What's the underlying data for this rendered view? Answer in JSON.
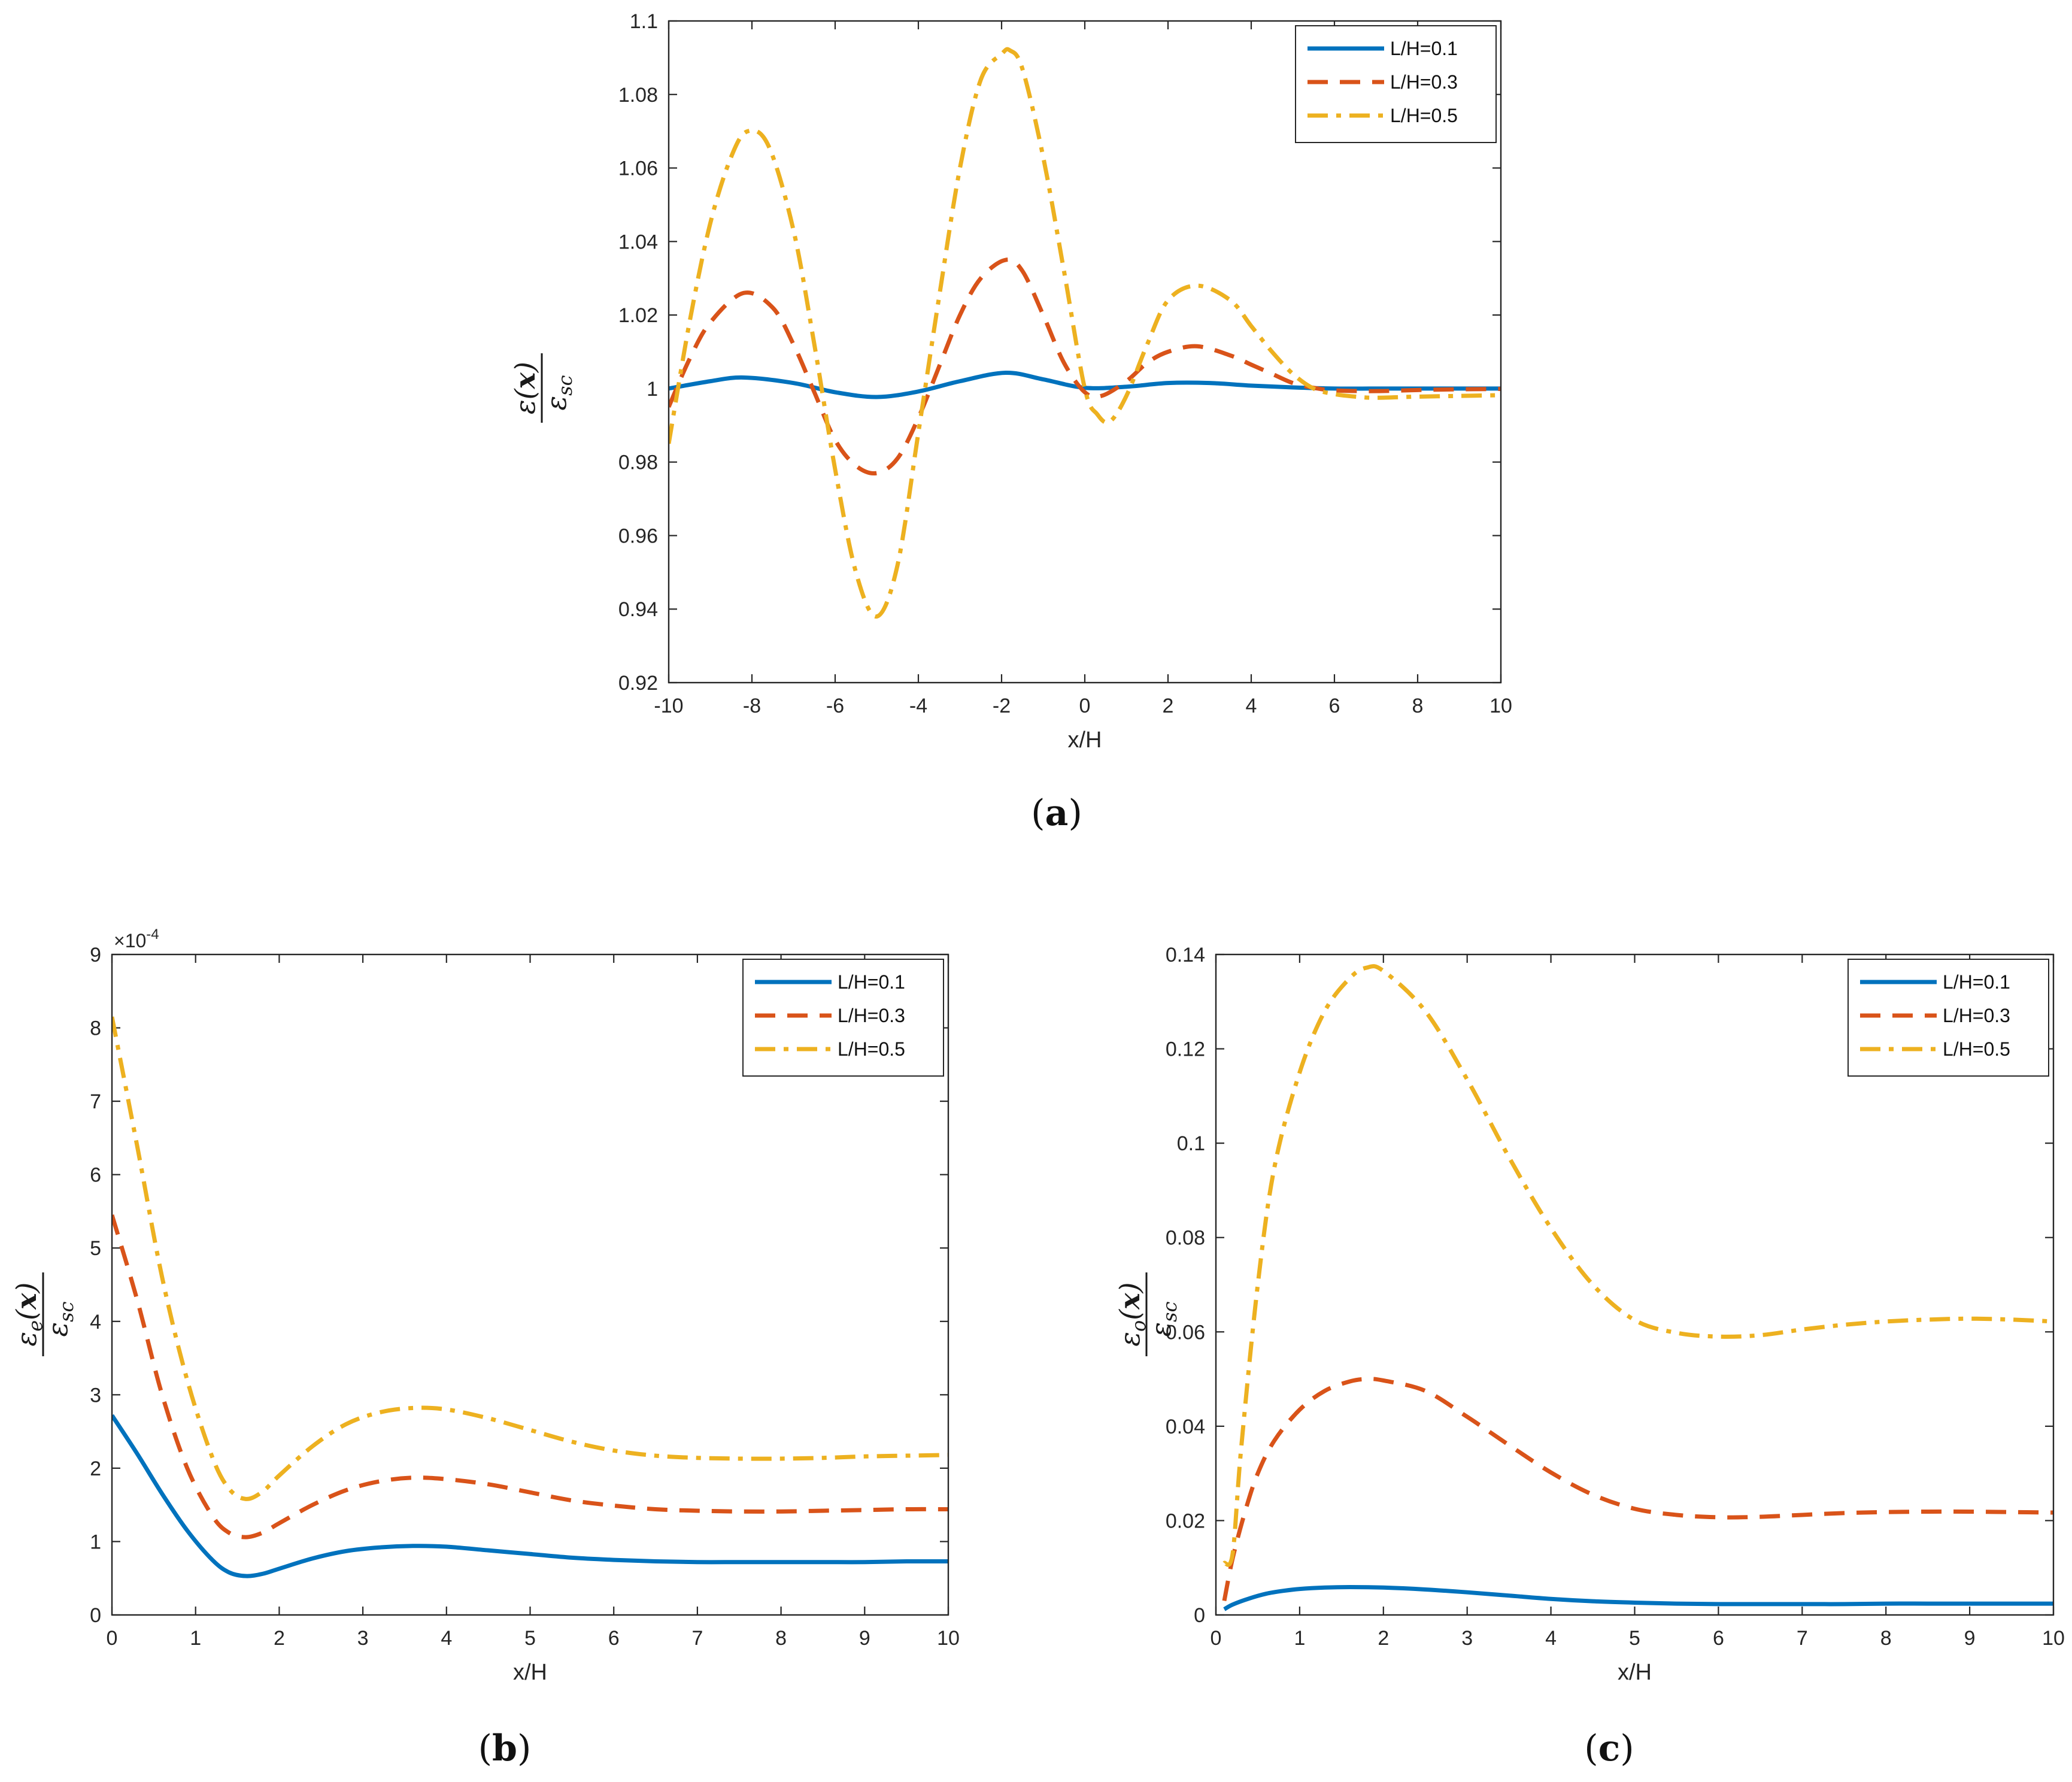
{
  "figure": {
    "panels": [
      {
        "id": "a",
        "label_open": "(",
        "label_letter": "a",
        "label_close": ")"
      },
      {
        "id": "b",
        "label_open": "(",
        "label_letter": "b",
        "label_close": ")"
      },
      {
        "id": "c",
        "label_open": "(",
        "label_letter": "c",
        "label_close": ")"
      }
    ]
  },
  "chart_data": [
    {
      "id": "a",
      "type": "line",
      "xlabel": "x/H",
      "ylabel": "ε(x)/ε_sc",
      "xlim": [
        -10,
        10
      ],
      "ylim": [
        0.92,
        1.1
      ],
      "xticks": [
        -10,
        -8,
        -6,
        -4,
        -2,
        0,
        2,
        4,
        6,
        8,
        10
      ],
      "yticks": [
        0.92,
        0.94,
        0.96,
        0.98,
        1,
        1.02,
        1.04,
        1.06,
        1.08,
        1.1
      ],
      "xtick_labels": [
        "-10",
        "-8",
        "-6",
        "-4",
        "-2",
        "0",
        "2",
        "4",
        "6",
        "8",
        "10"
      ],
      "ytick_labels": [
        "0.92",
        "0.94",
        "0.96",
        "0.98",
        "1",
        "1.02",
        "1.04",
        "1.06",
        "1.08",
        "1.1"
      ],
      "legend_position": "top-right",
      "series": [
        {
          "name": "L/H=0.1",
          "color": "#0072BD",
          "style": "solid",
          "x": [
            -10,
            -9,
            -8.2,
            -7,
            -6,
            -5,
            -4,
            -3,
            -1.9,
            -1,
            0,
            1,
            2,
            3,
            4,
            5,
            6,
            7,
            8,
            9,
            10
          ],
          "y": [
            1.0,
            1.002,
            1.003,
            1.0015,
            0.999,
            0.9977,
            0.9992,
            1.002,
            1.0043,
            1.0025,
            1.0002,
            1.0005,
            1.0015,
            1.0015,
            1.0008,
            1.0003,
            1.0,
            1.0,
            1.0,
            1.0,
            1.0
          ]
        },
        {
          "name": "L/H=0.3",
          "color": "#D95319",
          "style": "dashed",
          "x": [
            -10,
            -9.5,
            -9,
            -8.2,
            -7.5,
            -7,
            -6.5,
            -6,
            -5.5,
            -5,
            -4.5,
            -4,
            -3.5,
            -3,
            -2.5,
            -1.9,
            -1.5,
            -1,
            -0.5,
            0,
            0.4,
            1,
            1.5,
            2,
            2.7,
            3.5,
            4,
            4.5,
            5,
            5.5,
            6,
            7,
            8,
            9,
            10
          ],
          "y": [
            0.995,
            1.008,
            1.018,
            1.026,
            1.022,
            1.012,
            0.999,
            0.986,
            0.979,
            0.977,
            0.981,
            0.992,
            1.006,
            1.02,
            1.03,
            1.035,
            1.032,
            1.02,
            1.007,
            0.999,
            0.998,
            1.002,
            1.007,
            1.01,
            1.0115,
            1.009,
            1.0065,
            1.004,
            1.0015,
            1.0002,
            0.9995,
            0.9993,
            0.9996,
            0.9998,
            0.9999
          ]
        },
        {
          "name": "L/H=0.5",
          "color": "#EDB120",
          "style": "dashdot",
          "x": [
            -10,
            -9.5,
            -9,
            -8.5,
            -8.1,
            -7.6,
            -7,
            -6.5,
            -6,
            -5.5,
            -5,
            -4.5,
            -4,
            -3.5,
            -3,
            -2.5,
            -2,
            -1.8,
            -1.5,
            -1,
            -0.5,
            0,
            0.3,
            0.6,
            1,
            1.5,
            2,
            2.7,
            3.5,
            4,
            4.5,
            5,
            5.5,
            6,
            6.5,
            7,
            8,
            9,
            10
          ],
          "y": [
            0.985,
            1.018,
            1.045,
            1.063,
            1.07,
            1.066,
            1.043,
            1.012,
            0.978,
            0.95,
            0.938,
            0.952,
            0.988,
            1.025,
            1.06,
            1.084,
            1.091,
            1.092,
            1.087,
            1.063,
            1.032,
            1.0,
            0.993,
            0.991,
            0.998,
            1.012,
            1.024,
            1.028,
            1.024,
            1.017,
            1.01,
            1.004,
            1.0,
            0.9985,
            0.9978,
            0.9975,
            0.9978,
            0.998,
            0.9982
          ]
        }
      ]
    },
    {
      "id": "b",
      "type": "line",
      "xlabel": "x/H",
      "ylabel": "ε_e(x)/ε_sc",
      "scale_label_prefix": "×10",
      "scale_label_exp": "-4",
      "xlim": [
        0,
        10
      ],
      "ylim": [
        0,
        9
      ],
      "xticks": [
        0,
        1,
        2,
        3,
        4,
        5,
        6,
        7,
        8,
        9,
        10
      ],
      "yticks": [
        0,
        1,
        2,
        3,
        4,
        5,
        6,
        7,
        8,
        9
      ],
      "xtick_labels": [
        "0",
        "1",
        "2",
        "3",
        "4",
        "5",
        "6",
        "7",
        "8",
        "9",
        "10"
      ],
      "ytick_labels": [
        "0",
        "1",
        "2",
        "3",
        "4",
        "5",
        "6",
        "7",
        "8",
        "9"
      ],
      "legend_position": "top-right",
      "series": [
        {
          "name": "L/H=0.1",
          "color": "#0072BD",
          "style": "solid",
          "x": [
            0,
            0.3,
            0.6,
            0.9,
            1.2,
            1.4,
            1.6,
            1.8,
            2.0,
            2.4,
            2.8,
            3.2,
            3.6,
            4.0,
            4.5,
            5,
            5.5,
            6,
            6.5,
            7,
            7.5,
            8,
            8.5,
            9,
            9.5,
            10
          ],
          "y": [
            2.72,
            2.2,
            1.65,
            1.15,
            0.75,
            0.58,
            0.53,
            0.56,
            0.63,
            0.77,
            0.87,
            0.92,
            0.94,
            0.93,
            0.88,
            0.83,
            0.78,
            0.75,
            0.73,
            0.72,
            0.72,
            0.72,
            0.72,
            0.72,
            0.73,
            0.73
          ]
        },
        {
          "name": "L/H=0.3",
          "color": "#D95319",
          "style": "dashed",
          "x": [
            0,
            0.3,
            0.6,
            0.9,
            1.2,
            1.4,
            1.6,
            1.8,
            2.0,
            2.4,
            2.8,
            3.2,
            3.6,
            4.0,
            4.5,
            5,
            5.5,
            6,
            6.5,
            7,
            7.5,
            8,
            8.5,
            9,
            9.5,
            10
          ],
          "y": [
            5.45,
            4.3,
            3.0,
            2.0,
            1.35,
            1.12,
            1.06,
            1.12,
            1.25,
            1.5,
            1.7,
            1.82,
            1.87,
            1.85,
            1.78,
            1.67,
            1.56,
            1.49,
            1.44,
            1.42,
            1.41,
            1.41,
            1.42,
            1.43,
            1.44,
            1.44
          ]
        },
        {
          "name": "L/H=0.5",
          "color": "#EDB120",
          "style": "dashdot",
          "x": [
            0,
            0.3,
            0.6,
            0.9,
            1.2,
            1.4,
            1.6,
            1.8,
            2.0,
            2.4,
            2.8,
            3.2,
            3.6,
            4.0,
            4.5,
            5,
            5.5,
            6,
            6.5,
            7,
            7.5,
            8,
            8.5,
            9,
            9.5,
            10
          ],
          "y": [
            8.15,
            6.4,
            4.6,
            3.2,
            2.15,
            1.72,
            1.58,
            1.68,
            1.9,
            2.3,
            2.6,
            2.76,
            2.82,
            2.8,
            2.68,
            2.52,
            2.36,
            2.24,
            2.17,
            2.14,
            2.13,
            2.13,
            2.14,
            2.16,
            2.17,
            2.18
          ]
        }
      ]
    },
    {
      "id": "c",
      "type": "line",
      "xlabel": "x/H",
      "ylabel": "ε_o(x)/ε_sc",
      "xlim": [
        0,
        10
      ],
      "ylim": [
        0,
        0.14
      ],
      "xticks": [
        0,
        1,
        2,
        3,
        4,
        5,
        6,
        7,
        8,
        9,
        10
      ],
      "yticks": [
        0,
        0.02,
        0.04,
        0.06,
        0.08,
        0.1,
        0.12,
        0.14
      ],
      "xtick_labels": [
        "0",
        "1",
        "2",
        "3",
        "4",
        "5",
        "6",
        "7",
        "8",
        "9",
        "10"
      ],
      "ytick_labels": [
        "0",
        "0.02",
        "0.04",
        "0.06",
        "0.08",
        "0.1",
        "0.12",
        "0.14"
      ],
      "legend_position": "top-right",
      "series": [
        {
          "name": "L/H=0.1",
          "color": "#0072BD",
          "style": "solid",
          "x": [
            0.1,
            0.2,
            0.4,
            0.6,
            0.8,
            1.0,
            1.3,
            1.6,
            2.0,
            2.5,
            3,
            3.5,
            4,
            4.5,
            5,
            5.5,
            6,
            6.5,
            7,
            7.5,
            8,
            8.5,
            9,
            9.5,
            10
          ],
          "y": [
            0.0012,
            0.0022,
            0.0035,
            0.0045,
            0.0051,
            0.0055,
            0.0058,
            0.0059,
            0.0058,
            0.0054,
            0.0048,
            0.0041,
            0.0034,
            0.0029,
            0.0026,
            0.0024,
            0.0023,
            0.0023,
            0.0023,
            0.0023,
            0.0024,
            0.0024,
            0.0024,
            0.0024,
            0.0024
          ]
        },
        {
          "name": "L/H=0.3",
          "color": "#D95319",
          "style": "dashed",
          "x": [
            0.1,
            0.2,
            0.35,
            0.5,
            0.7,
            1.0,
            1.3,
            1.6,
            1.8,
            2.0,
            2.5,
            3,
            3.5,
            4,
            4.5,
            5,
            5.5,
            6,
            6.5,
            7,
            7.5,
            8,
            8.5,
            9,
            9.5,
            10
          ],
          "y": [
            0.003,
            0.012,
            0.022,
            0.03,
            0.037,
            0.0435,
            0.0475,
            0.0495,
            0.05,
            0.0497,
            0.0475,
            0.042,
            0.036,
            0.0302,
            0.0255,
            0.0225,
            0.0212,
            0.0207,
            0.0208,
            0.0212,
            0.0216,
            0.0218,
            0.0219,
            0.0219,
            0.0218,
            0.0217
          ]
        },
        {
          "name": "L/H=0.5",
          "color": "#EDB120",
          "style": "dashdot",
          "x": [
            0.1,
            0.2,
            0.3,
            0.5,
            0.7,
            1.0,
            1.3,
            1.6,
            1.8,
            2.0,
            2.5,
            3,
            3.5,
            4,
            4.5,
            5,
            5.5,
            6,
            6.5,
            7,
            7.5,
            8,
            8.5,
            9,
            9.5,
            10
          ],
          "y": [
            0.011,
            0.013,
            0.035,
            0.07,
            0.095,
            0.115,
            0.128,
            0.135,
            0.1372,
            0.1365,
            0.128,
            0.1135,
            0.097,
            0.082,
            0.07,
            0.0625,
            0.0598,
            0.059,
            0.0593,
            0.0605,
            0.0615,
            0.0622,
            0.0626,
            0.0628,
            0.0626,
            0.0622
          ]
        }
      ]
    }
  ]
}
